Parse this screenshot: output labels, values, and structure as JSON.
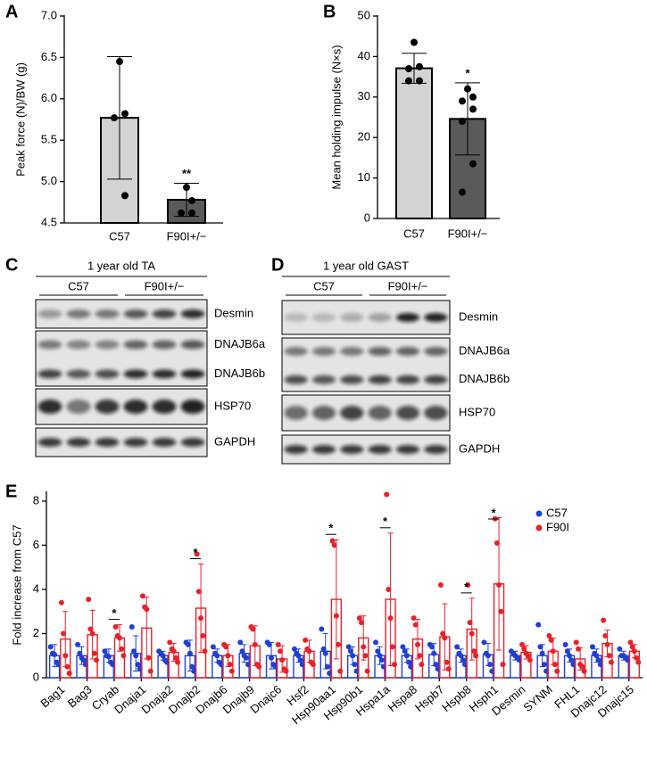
{
  "chart_data": [
    {
      "type": "bar",
      "panel_label": "A",
      "y_label": "Peak force (N)/BW (g)",
      "categories": [
        "C57",
        "F90I+/−"
      ],
      "colors": [
        "#d3d3d3",
        "#5a5a5a"
      ],
      "values": [
        5.77,
        4.78
      ],
      "errors": [
        0.74,
        0.2
      ],
      "points": [
        [
          6.45,
          5.82,
          5.77,
          4.83
        ],
        [
          4.93,
          4.77,
          4.62,
          4.62
        ]
      ],
      "annotations": [
        {
          "text": "**",
          "x": "F90I+/−"
        }
      ],
      "ylim": [
        4.5,
        7.0
      ],
      "yticks": [
        4.5,
        {
          "value": 5,
          "label": "5.0"
        },
        5.5,
        {
          "value": 6,
          "label": "6.0"
        },
        6.5,
        {
          "value": 7,
          "label": "7.0"
        }
      ]
    },
    {
      "type": "bar",
      "panel_label": "B",
      "y_label": "Mean holding impulse (N×s)",
      "categories": [
        "C57",
        "F90I+/−"
      ],
      "colors": [
        "#d3d3d3",
        "#5a5a5a"
      ],
      "values": [
        37.1,
        24.6
      ],
      "errors": [
        3.7,
        8.9
      ],
      "points": [
        [
          43.5,
          37.5,
          37,
          34,
          34
        ],
        [
          32,
          30,
          29,
          27,
          24,
          13.5,
          6.5
        ]
      ],
      "annotations": [
        {
          "text": "*",
          "x": "F90I+/−"
        }
      ],
      "ylim": [
        0,
        50
      ],
      "yticks": [
        0,
        10,
        20,
        30,
        40,
        50
      ]
    },
    {
      "type": "grouped_bar",
      "panel_label": "E",
      "y_label": "Fold increase from C57",
      "categories": [
        "Bag1",
        "Bag3",
        "Cryab",
        "Dnaja1",
        "Dnaja2",
        "Dnajb2",
        "Dnajb6",
        "Dnajb9",
        "Dnajc6",
        "Hsf2",
        "Hsp90aa1",
        "Hsp90b1",
        "Hspa1a",
        "Hspa8",
        "Hspb7",
        "Hspb8",
        "Hsph1",
        "Desmin",
        "SYNM",
        "FHL1",
        "Dnajc12",
        "Dnajc15"
      ],
      "series": [
        {
          "name": "C57",
          "color": "#1f3fd6",
          "values": [
            1.0,
            1.0,
            1.0,
            1.1,
            1.0,
            1.0,
            1.0,
            1.1,
            1.0,
            1.0,
            1.2,
            1.0,
            1.0,
            1.0,
            1.05,
            1.0,
            1.05,
            1.0,
            1.0,
            1.0,
            1.0,
            1.0
          ],
          "errors": [
            0.5,
            0.4,
            0.3,
            0.8,
            0.2,
            0.7,
            0.3,
            0.4,
            0.6,
            0.3,
            0.8,
            0.4,
            0.4,
            0.3,
            0.5,
            0.3,
            0.5,
            0.2,
            0.5,
            0.3,
            0.3,
            0.2
          ],
          "points": [
            [
              1.4,
              1.1,
              1.05,
              0.7,
              0.6
            ],
            [
              1.5,
              1.1,
              0.9,
              0.8,
              0.6
            ],
            [
              1.2,
              1.0,
              0.95,
              0.7,
              0.6
            ],
            [
              2.3,
              1.2,
              1.0,
              0.6,
              0.4
            ],
            [
              1.2,
              1.1,
              1.0,
              0.8,
              0.7
            ],
            [
              1.6,
              1.5,
              1.1,
              0.5,
              0.3
            ],
            [
              1.4,
              1.1,
              1.0,
              0.7,
              0.6
            ],
            [
              1.6,
              1.2,
              1.0,
              0.9,
              0.6
            ],
            [
              1.6,
              1.5,
              0.9,
              0.6,
              0.5
            ],
            [
              1.3,
              1.1,
              1.0,
              0.8,
              0.6
            ],
            [
              2.2,
              1.3,
              1.1,
              0.5,
              0.2
            ],
            [
              1.4,
              1.2,
              1.0,
              0.6,
              0.3
            ],
            [
              1.6,
              1.2,
              1.0,
              0.8,
              0.5
            ],
            [
              1.4,
              1.2,
              1.0,
              0.7,
              0.5
            ],
            [
              1.5,
              1.4,
              1.1,
              0.6,
              0.4
            ],
            [
              1.4,
              1.1,
              1.0,
              0.8,
              0.6
            ],
            [
              1.6,
              1.1,
              1.0,
              0.6,
              0.3
            ],
            [
              1.2,
              1.1,
              1.0,
              0.9,
              0.8
            ],
            [
              2.4,
              1.4,
              1.1,
              0.6,
              0.3
            ],
            [
              1.5,
              1.2,
              1.0,
              0.8,
              0.6
            ],
            [
              1.4,
              1.1,
              1.0,
              0.8,
              0.6
            ],
            [
              1.3,
              1.0,
              1.0,
              0.9,
              0.8
            ]
          ]
        },
        {
          "name": "F90I",
          "color": "#e8202a",
          "values": [
            1.75,
            1.95,
            1.8,
            2.25,
            1.15,
            3.15,
            1.0,
            1.45,
            0.85,
            1.2,
            3.55,
            1.8,
            3.55,
            1.75,
            1.85,
            2.2,
            4.25,
            1.15,
            1.2,
            0.85,
            1.55,
            1.2
          ],
          "errors": [
            1.25,
            1.1,
            0.6,
            1.4,
            0.4,
            2.0,
            0.5,
            0.9,
            0.6,
            0.5,
            2.7,
            1.0,
            3.0,
            0.9,
            1.5,
            1.4,
            3.0,
            0.3,
            0.6,
            0.5,
            0.6,
            0.3
          ],
          "points": [
            [
              3.4,
              2.0,
              1.0,
              0.5,
              0.2
            ],
            [
              3.55,
              2.2,
              2.0,
              1.1,
              0.8
            ],
            [
              2.3,
              1.9,
              1.8,
              1.3,
              1.0
            ],
            [
              3.7,
              3.2,
              3.1,
              0.9,
              0.3
            ],
            [
              1.6,
              1.3,
              1.2,
              0.9,
              0.7
            ],
            [
              5.6,
              3.9,
              2.7,
              1.9,
              1.2
            ],
            [
              1.5,
              1.4,
              1.0,
              0.6,
              0.3
            ],
            [
              2.3,
              2.2,
              1.5,
              0.6,
              0.5
            ],
            [
              1.5,
              1.2,
              0.8,
              0.4,
              0.3
            ],
            [
              1.7,
              1.3,
              1.2,
              0.7,
              0.6
            ],
            [
              6.2,
              6.0,
              2.8,
              1.5,
              0.3
            ],
            [
              2.7,
              2.5,
              1.4,
              1.0,
              0.3
            ],
            [
              8.3,
              4.0,
              2.7,
              1.4,
              0.6
            ],
            [
              2.7,
              2.4,
              1.5,
              1.0,
              0.6
            ],
            [
              4.2,
              2.0,
              1.8,
              0.7,
              0.4
            ],
            [
              4.2,
              2.5,
              2.0,
              1.2,
              1.0
            ],
            [
              7.2,
              6.1,
              4.2,
              3.0,
              0.6
            ],
            [
              1.5,
              1.3,
              1.1,
              1.0,
              0.8
            ],
            [
              1.9,
              1.7,
              1.2,
              0.6,
              0.3
            ],
            [
              1.6,
              1.3,
              0.6,
              0.5,
              0.3
            ],
            [
              2.6,
              1.9,
              1.5,
              1.0,
              0.7
            ],
            [
              1.6,
              1.4,
              1.2,
              0.9,
              0.7
            ]
          ]
        }
      ],
      "annotations": [
        {
          "text": "*",
          "x": "Cryab"
        },
        {
          "text": "*",
          "x": "Dnajb2"
        },
        {
          "text": "*",
          "x": "Hsp90aa1"
        },
        {
          "text": "*",
          "x": "Hspa1a"
        },
        {
          "text": "*",
          "x": "Hspb8"
        },
        {
          "text": "*",
          "x": "Hsph1"
        }
      ],
      "ylim": [
        0,
        8.4
      ],
      "yticks": [
        0,
        2,
        4,
        6,
        8
      ],
      "legend": "top-right"
    }
  ],
  "blots": [
    {
      "panel_label": "C",
      "title": "1 year old TA",
      "groups": [
        "C57",
        "F90I+/−"
      ],
      "bands": [
        "Desmin",
        "DNAJB6a",
        "DNAJB6b",
        "HSP70",
        "GAPDH"
      ]
    },
    {
      "panel_label": "D",
      "title": "1 year old GAST",
      "groups": [
        "C57",
        "F90I+/−"
      ],
      "bands": [
        "Desmin",
        "DNAJB6a",
        "DNAJB6b",
        "HSP70",
        "GAPDH"
      ]
    }
  ]
}
